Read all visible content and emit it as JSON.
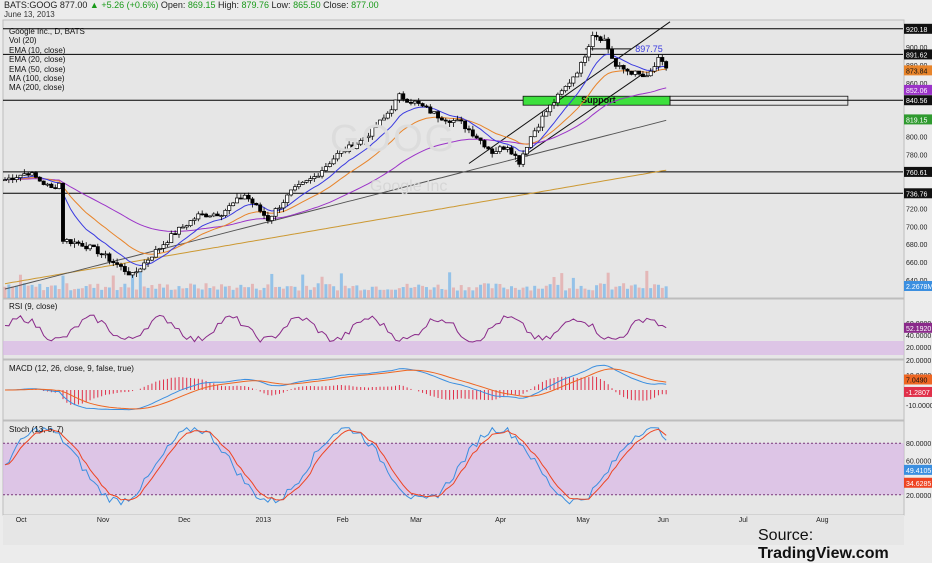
{
  "header": {
    "symbol": "BATS:GOOG",
    "last": "877.00",
    "change": "▲ +5.26 (+0.6%)",
    "open_label": "Open:",
    "open": "869.15",
    "high_label": "High:",
    "high": "879.76",
    "low_label": "Low:",
    "low": "865.50",
    "close_label": "Close:",
    "close": "877.00",
    "date": "June 13, 2013"
  },
  "legend": {
    "title": "Google Inc., D, BATS",
    "items": [
      "Vol (20)",
      "EMA (10, close)",
      "EMA (20, close)",
      "EMA (50, close)",
      "MA (100, close)",
      "MA (200, close)"
    ]
  },
  "pane_labels": {
    "rsi": "RSI (9, close)",
    "macd": "MACD (12, 26, close, 9, false, true)",
    "stoch": "Stoch (13, 5, 7)"
  },
  "annotations": {
    "target": "897.75",
    "support": "Support"
  },
  "watermark": {
    "big": "GOOG",
    "small": "Google Inc"
  },
  "source": {
    "prefix": "Source: ",
    "brand": "TradingView.com"
  },
  "colors": {
    "ema10": "#3a3ae0",
    "ema20": "#e8842a",
    "ema50": "#9b33c8",
    "ma100": "#555555",
    "ma200": "#cc9933",
    "rsi": "#8a2a8a",
    "macd": "#3b8fe0",
    "signal": "#ee6622",
    "hist": "#e0304a",
    "stoch_k": "#3b8fe0",
    "stoch_d": "#ee4422",
    "support": "#3de03d",
    "overbought_band": "#d9b7e6"
  },
  "chart_data": {
    "type": "candlestick",
    "title": "Google Inc., D, BATS",
    "price_range": [
      620,
      930
    ],
    "price_axis_ticks": [
      "920.00",
      "900.00",
      "880.00",
      "860.00",
      "840.00",
      "820.00",
      "800.00",
      "780.00",
      "760.00",
      "740.00",
      "720.00",
      "700.00",
      "680.00",
      "660.00",
      "640.00"
    ],
    "price_badges": [
      {
        "value": "920.18",
        "style": "dark"
      },
      {
        "value": "891.62",
        "style": "dark"
      },
      {
        "value": "873.84",
        "style": "orange"
      },
      {
        "value": "852.06",
        "style": "purple"
      },
      {
        "value": "840.56",
        "style": "dark"
      },
      {
        "value": "819.15",
        "style": "green"
      },
      {
        "value": "760.61",
        "style": "dark"
      },
      {
        "value": "736.76",
        "style": "dark"
      },
      {
        "value": "2.2678M",
        "style": "blue"
      }
    ],
    "horizontal_levels": [
      920.18,
      891.62,
      840.56,
      760.61,
      736.76
    ],
    "target_level": 897.75,
    "support_zone": [
      835,
      845
    ],
    "months": [
      "Oct",
      "Nov",
      "Dec",
      "2013",
      "Feb",
      "Mar",
      "Apr",
      "May",
      "Jun",
      "Jul",
      "Aug"
    ],
    "anchors": [
      {
        "t": 0,
        "p": 752
      },
      {
        "t": 6,
        "p": 760
      },
      {
        "t": 12,
        "p": 742
      },
      {
        "t": 14,
        "p": 748
      },
      {
        "t": 15,
        "p": 685
      },
      {
        "t": 20,
        "p": 680
      },
      {
        "t": 24,
        "p": 672
      },
      {
        "t": 28,
        "p": 660
      },
      {
        "t": 33,
        "p": 645
      },
      {
        "t": 38,
        "p": 668
      },
      {
        "t": 44,
        "p": 693
      },
      {
        "t": 50,
        "p": 712
      },
      {
        "t": 56,
        "p": 715
      },
      {
        "t": 62,
        "p": 735
      },
      {
        "t": 68,
        "p": 708
      },
      {
        "t": 74,
        "p": 738
      },
      {
        "t": 80,
        "p": 755
      },
      {
        "t": 86,
        "p": 780
      },
      {
        "t": 92,
        "p": 795
      },
      {
        "t": 98,
        "p": 820
      },
      {
        "t": 102,
        "p": 845
      },
      {
        "t": 106,
        "p": 838
      },
      {
        "t": 112,
        "p": 823
      },
      {
        "t": 118,
        "p": 815
      },
      {
        "t": 122,
        "p": 800
      },
      {
        "t": 126,
        "p": 783
      },
      {
        "t": 130,
        "p": 790
      },
      {
        "t": 133,
        "p": 772
      },
      {
        "t": 136,
        "p": 800
      },
      {
        "t": 140,
        "p": 828
      },
      {
        "t": 145,
        "p": 855
      },
      {
        "t": 149,
        "p": 880
      },
      {
        "t": 152,
        "p": 915
      },
      {
        "t": 155,
        "p": 908
      },
      {
        "t": 158,
        "p": 878
      },
      {
        "t": 162,
        "p": 872
      },
      {
        "t": 166,
        "p": 865
      },
      {
        "t": 169,
        "p": 885
      },
      {
        "t": 171,
        "p": 877
      }
    ],
    "volume_range_M": [
      0,
      14
    ],
    "rsi_range": [
      0,
      100
    ],
    "rsi_ticks": [
      "60.0000",
      "40.0000",
      "20.0000"
    ],
    "rsi_value": "52.1920",
    "macd_ticks": [
      "20.0000",
      "10.0000",
      "-10.0000"
    ],
    "macd_values": [
      "7.0490",
      "-1.2807"
    ],
    "stoch_ticks": [
      "80.0000",
      "60.0000",
      "20.0000"
    ],
    "stoch_values": [
      "49.4105",
      "34.6285"
    ]
  }
}
